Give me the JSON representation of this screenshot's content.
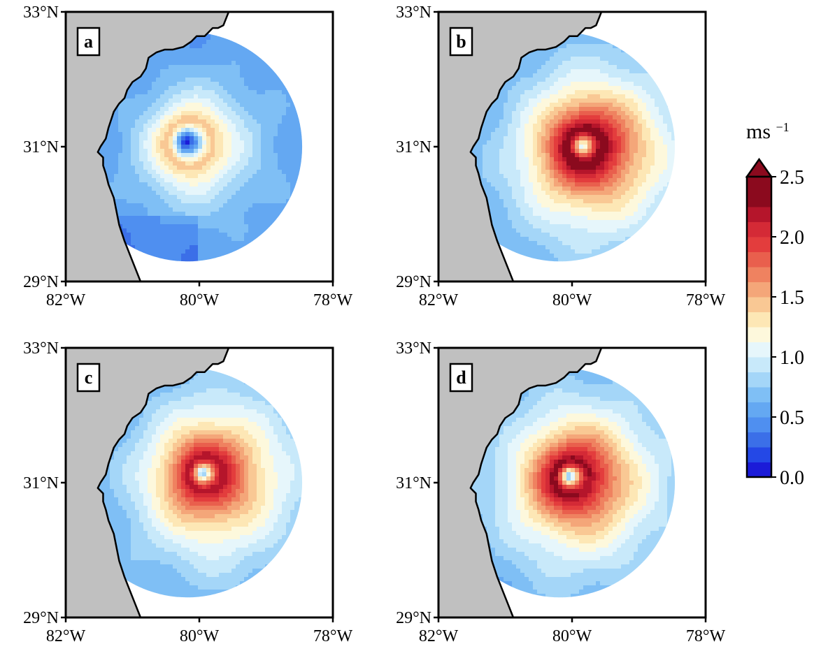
{
  "figure": {
    "colors": {
      "land": "#c0c0c0",
      "coast": "#000000",
      "frame": "#000000",
      "background": "#ffffff"
    }
  },
  "axes": {
    "x_ticks": [
      "82°W",
      "80°W",
      "78°W"
    ],
    "y_ticks": [
      "33°N",
      "31°N",
      "29°N"
    ]
  },
  "panels": [
    {
      "label": "a",
      "center_lon": -80.2,
      "center_lat": 31.08,
      "core": 0.05,
      "max": 1.45,
      "shape": "weak"
    },
    {
      "label": "b",
      "center_lon": -79.85,
      "center_lat": 31.02,
      "core": 0.9,
      "max": 2.4,
      "shape": "strong"
    },
    {
      "label": "c",
      "center_lon": -79.95,
      "center_lat": 31.15,
      "core": 0.55,
      "max": 2.2,
      "shape": "strong"
    },
    {
      "label": "d",
      "center_lon": -80.05,
      "center_lat": 31.1,
      "core": 0.55,
      "max": 2.3,
      "shape": "strong"
    }
  ],
  "colorbar": {
    "unit_base": "ms",
    "unit_exp": "−1",
    "ticks": [
      "0.0",
      "0.5",
      "1.0",
      "1.5",
      "2.0",
      "2.5"
    ],
    "min": 0.0,
    "max": 2.5,
    "step": 0.125,
    "extend": "max",
    "colors": [
      "#1b1bd8",
      "#2448e6",
      "#3b6fe8",
      "#4f8ff0",
      "#64a8f2",
      "#7fbff5",
      "#a4d6f8",
      "#c8e9fa",
      "#e6f6fb",
      "#fdf8dc",
      "#fde7b5",
      "#f9c894",
      "#f4a679",
      "#ef8260",
      "#e95f4d",
      "#e33d3d",
      "#d42a36",
      "#b5152b",
      "#8b0a1e"
    ]
  }
}
